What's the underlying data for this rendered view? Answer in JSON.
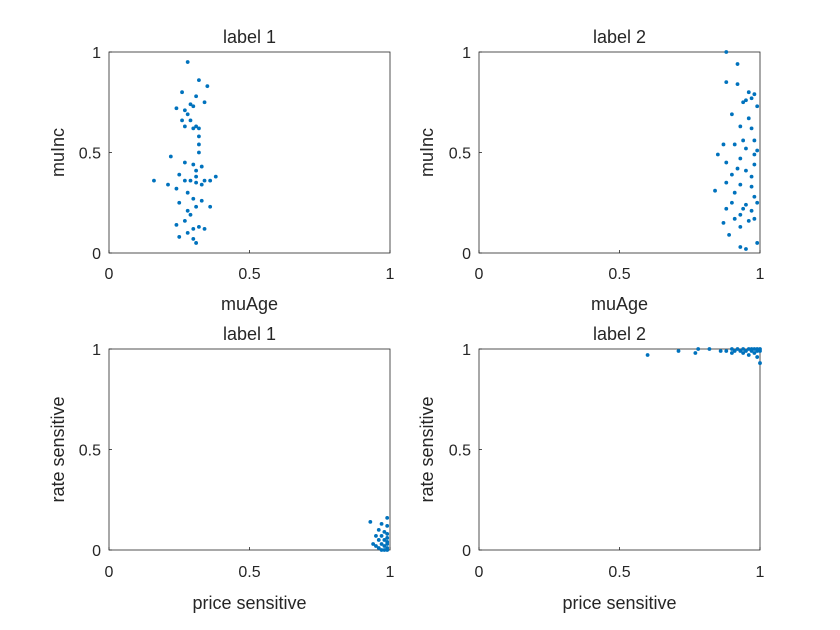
{
  "chart_data": [
    {
      "type": "scatter",
      "title": "label 1",
      "xlabel": "muAge",
      "ylabel": "muInc",
      "xlim": [
        0,
        1
      ],
      "ylim": [
        0,
        1
      ],
      "xticks": [
        "0",
        "0.5",
        "1"
      ],
      "yticks": [
        "0",
        "0.5",
        "1"
      ],
      "grid": false,
      "marker_color": "#0072BD",
      "points": [
        [
          0.28,
          0.95
        ],
        [
          0.32,
          0.86
        ],
        [
          0.35,
          0.83
        ],
        [
          0.26,
          0.8
        ],
        [
          0.31,
          0.78
        ],
        [
          0.29,
          0.74
        ],
        [
          0.34,
          0.75
        ],
        [
          0.24,
          0.72
        ],
        [
          0.3,
          0.73
        ],
        [
          0.27,
          0.71
        ],
        [
          0.28,
          0.69
        ],
        [
          0.26,
          0.66
        ],
        [
          0.29,
          0.66
        ],
        [
          0.31,
          0.63
        ],
        [
          0.27,
          0.63
        ],
        [
          0.3,
          0.62
        ],
        [
          0.32,
          0.62
        ],
        [
          0.32,
          0.58
        ],
        [
          0.32,
          0.54
        ],
        [
          0.32,
          0.5
        ],
        [
          0.22,
          0.48
        ],
        [
          0.27,
          0.45
        ],
        [
          0.3,
          0.44
        ],
        [
          0.33,
          0.43
        ],
        [
          0.31,
          0.41
        ],
        [
          0.25,
          0.39
        ],
        [
          0.31,
          0.38
        ],
        [
          0.38,
          0.38
        ],
        [
          0.16,
          0.36
        ],
        [
          0.27,
          0.36
        ],
        [
          0.29,
          0.36
        ],
        [
          0.34,
          0.36
        ],
        [
          0.36,
          0.36
        ],
        [
          0.31,
          0.35
        ],
        [
          0.21,
          0.34
        ],
        [
          0.33,
          0.34
        ],
        [
          0.24,
          0.32
        ],
        [
          0.28,
          0.3
        ],
        [
          0.3,
          0.27
        ],
        [
          0.33,
          0.26
        ],
        [
          0.25,
          0.25
        ],
        [
          0.31,
          0.23
        ],
        [
          0.36,
          0.23
        ],
        [
          0.28,
          0.21
        ],
        [
          0.27,
          0.16
        ],
        [
          0.29,
          0.19
        ],
        [
          0.24,
          0.14
        ],
        [
          0.32,
          0.13
        ],
        [
          0.3,
          0.12
        ],
        [
          0.34,
          0.12
        ],
        [
          0.28,
          0.1
        ],
        [
          0.25,
          0.08
        ],
        [
          0.3,
          0.07
        ],
        [
          0.31,
          0.05
        ]
      ]
    },
    {
      "type": "scatter",
      "title": "label 2",
      "xlabel": "muAge",
      "ylabel": "muInc",
      "xlim": [
        0,
        1
      ],
      "ylim": [
        0,
        1
      ],
      "xticks": [
        "0",
        "0.5",
        "1"
      ],
      "yticks": [
        "0",
        "0.5",
        "1"
      ],
      "grid": false,
      "marker_color": "#0072BD",
      "points": [
        [
          0.88,
          1.0
        ],
        [
          0.92,
          0.94
        ],
        [
          0.88,
          0.85
        ],
        [
          0.92,
          0.84
        ],
        [
          0.96,
          0.8
        ],
        [
          0.98,
          0.79
        ],
        [
          0.97,
          0.77
        ],
        [
          0.95,
          0.76
        ],
        [
          0.94,
          0.75
        ],
        [
          0.99,
          0.73
        ],
        [
          0.9,
          0.69
        ],
        [
          0.96,
          0.67
        ],
        [
          0.93,
          0.63
        ],
        [
          0.97,
          0.62
        ],
        [
          0.98,
          0.56
        ],
        [
          0.94,
          0.56
        ],
        [
          0.91,
          0.54
        ],
        [
          0.87,
          0.54
        ],
        [
          0.95,
          0.52
        ],
        [
          0.99,
          0.51
        ],
        [
          0.98,
          0.49
        ],
        [
          0.85,
          0.49
        ],
        [
          0.93,
          0.47
        ],
        [
          0.88,
          0.45
        ],
        [
          0.98,
          0.44
        ],
        [
          0.92,
          0.42
        ],
        [
          0.95,
          0.41
        ],
        [
          0.9,
          0.39
        ],
        [
          0.97,
          0.38
        ],
        [
          0.88,
          0.35
        ],
        [
          0.93,
          0.34
        ],
        [
          0.97,
          0.33
        ],
        [
          0.84,
          0.31
        ],
        [
          0.91,
          0.3
        ],
        [
          0.98,
          0.28
        ],
        [
          0.9,
          0.25
        ],
        [
          0.95,
          0.24
        ],
        [
          0.99,
          0.25
        ],
        [
          0.94,
          0.22
        ],
        [
          0.88,
          0.22
        ],
        [
          0.97,
          0.21
        ],
        [
          0.93,
          0.19
        ],
        [
          0.98,
          0.17
        ],
        [
          0.91,
          0.17
        ],
        [
          0.96,
          0.16
        ],
        [
          0.87,
          0.15
        ],
        [
          0.93,
          0.13
        ],
        [
          0.89,
          0.09
        ],
        [
          0.99,
          0.05
        ],
        [
          0.93,
          0.03
        ],
        [
          0.95,
          0.02
        ]
      ]
    },
    {
      "type": "scatter",
      "title": "label 1",
      "xlabel": "price sensitive",
      "ylabel": "rate sensitive",
      "xlim": [
        0,
        1
      ],
      "ylim": [
        0,
        1
      ],
      "xticks": [
        "0",
        "0.5",
        "1"
      ],
      "yticks": [
        "0",
        "0.5",
        "1"
      ],
      "grid": false,
      "marker_color": "#0072BD",
      "points": [
        [
          0.99,
          0.16
        ],
        [
          0.93,
          0.14
        ],
        [
          0.97,
          0.13
        ],
        [
          0.99,
          0.12
        ],
        [
          0.96,
          0.1
        ],
        [
          0.98,
          0.09
        ],
        [
          0.99,
          0.08
        ],
        [
          0.95,
          0.07
        ],
        [
          0.97,
          0.07
        ],
        [
          0.99,
          0.06
        ],
        [
          0.96,
          0.05
        ],
        [
          0.98,
          0.05
        ],
        [
          0.99,
          0.04
        ],
        [
          0.94,
          0.03
        ],
        [
          0.97,
          0.03
        ],
        [
          0.99,
          0.03
        ],
        [
          0.95,
          0.02
        ],
        [
          0.98,
          0.02
        ],
        [
          0.99,
          0.01
        ],
        [
          0.96,
          0.01
        ],
        [
          0.97,
          0.0
        ],
        [
          0.99,
          0.0
        ],
        [
          0.98,
          0.0
        ]
      ]
    },
    {
      "type": "scatter",
      "title": "label 2",
      "xlabel": "price sensitive",
      "ylabel": "rate sensitive",
      "xlim": [
        0,
        1
      ],
      "ylim": [
        0,
        1
      ],
      "xticks": [
        "0",
        "0.5",
        "1"
      ],
      "yticks": [
        "0",
        "0.5",
        "1"
      ],
      "grid": false,
      "marker_color": "#0072BD",
      "points": [
        [
          0.6,
          0.97
        ],
        [
          0.71,
          0.99
        ],
        [
          0.77,
          0.98
        ],
        [
          0.78,
          1.0
        ],
        [
          0.82,
          1.0
        ],
        [
          0.86,
          0.99
        ],
        [
          0.88,
          0.99
        ],
        [
          0.9,
          0.98
        ],
        [
          0.9,
          1.0
        ],
        [
          0.91,
          0.99
        ],
        [
          0.92,
          1.0
        ],
        [
          0.93,
          0.99
        ],
        [
          0.94,
          0.98
        ],
        [
          0.94,
          1.0
        ],
        [
          0.95,
          0.99
        ],
        [
          0.96,
          1.0
        ],
        [
          0.96,
          0.97
        ],
        [
          0.97,
          0.99
        ],
        [
          0.97,
          1.0
        ],
        [
          0.98,
          0.98
        ],
        [
          0.98,
          1.0
        ],
        [
          0.99,
          0.99
        ],
        [
          0.99,
          1.0
        ],
        [
          1.0,
          0.99
        ],
        [
          1.0,
          1.0
        ],
        [
          0.99,
          0.96
        ],
        [
          1.0,
          0.93
        ]
      ]
    }
  ]
}
